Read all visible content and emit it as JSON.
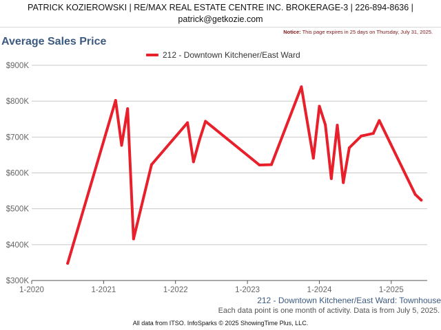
{
  "header": {
    "line1": "PATRICK KOZIEROWSKI | RE/MAX REAL ESTATE CENTRE INC. BROKERAGE-3 | 226-894-8636 |",
    "line2": "patrick@getkozie.com"
  },
  "notice": {
    "label": "Notice:",
    "text": "This page expires in 25 days on Thursday, July 31, 2025."
  },
  "footer": {
    "subtitle": "212 - Downtown Kitchener/East Ward: Townhouse",
    "note": "Each data point is one month of activity. Data is from July 5, 2025.",
    "credit": "All data from ITSO. InfoSparks © 2025 ShowingTime Plus, LLC."
  },
  "colors": {
    "series": "#e8202b",
    "title": "#3c5a80",
    "grid": "#c8c8c8"
  },
  "chart_data": {
    "type": "line",
    "title": "Average Sales Price",
    "xlabel": "",
    "ylabel": "",
    "x_ticks": [
      "1-2020",
      "1-2021",
      "1-2022",
      "1-2023",
      "1-2024",
      "1-2025"
    ],
    "y_ticks": [
      "$300K",
      "$400K",
      "$500K",
      "$600K",
      "$700K",
      "$800K",
      "$900K"
    ],
    "ylim": [
      300000,
      900000
    ],
    "xlim": [
      "2020-01",
      "2025-07"
    ],
    "grid": true,
    "legend_position": "top-center",
    "series": [
      {
        "name": "212 - Downtown Kitchener/East Ward",
        "color": "#e8202b",
        "points": [
          {
            "x": "2020-07",
            "y": 348000
          },
          {
            "x": "2021-03",
            "y": 802000
          },
          {
            "x": "2021-04",
            "y": 677000
          },
          {
            "x": "2021-05",
            "y": 779000
          },
          {
            "x": "2021-06",
            "y": 416000
          },
          {
            "x": "2021-09",
            "y": 623000
          },
          {
            "x": "2022-03",
            "y": 740000
          },
          {
            "x": "2022-04",
            "y": 631000
          },
          {
            "x": "2022-05",
            "y": 692000
          },
          {
            "x": "2022-06",
            "y": 744000
          },
          {
            "x": "2023-03",
            "y": 622000
          },
          {
            "x": "2023-05",
            "y": 623000
          },
          {
            "x": "2023-10",
            "y": 840000
          },
          {
            "x": "2023-12",
            "y": 641000
          },
          {
            "x": "2024-01",
            "y": 786000
          },
          {
            "x": "2024-02",
            "y": 734000
          },
          {
            "x": "2024-03",
            "y": 584000
          },
          {
            "x": "2024-04",
            "y": 733000
          },
          {
            "x": "2024-05",
            "y": 573000
          },
          {
            "x": "2024-06",
            "y": 670000
          },
          {
            "x": "2024-08",
            "y": 703000
          },
          {
            "x": "2024-10",
            "y": 710000
          },
          {
            "x": "2024-11",
            "y": 746000
          },
          {
            "x": "2025-05",
            "y": 540000
          },
          {
            "x": "2025-06",
            "y": 524000
          }
        ]
      }
    ]
  }
}
